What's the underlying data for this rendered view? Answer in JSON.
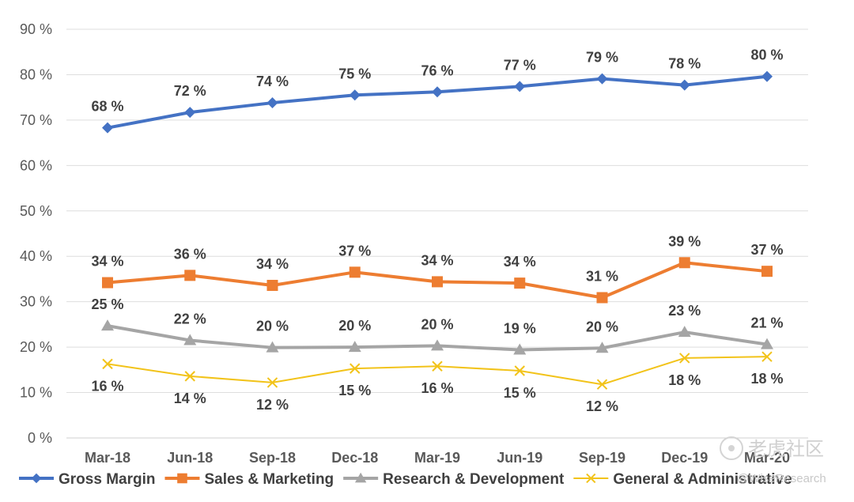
{
  "chart_data": {
    "type": "line",
    "title": "",
    "xlabel": "",
    "ylabel": "",
    "categories": [
      "Mar-18",
      "Jun-18",
      "Sep-18",
      "Dec-18",
      "Mar-19",
      "Jun-19",
      "Sep-19",
      "Dec-19",
      "Mar-20"
    ],
    "ylim": [
      0,
      90
    ],
    "y_ticks": [
      0,
      10,
      20,
      30,
      40,
      50,
      60,
      70,
      80,
      90
    ],
    "y_tick_labels": [
      "0 %",
      "10 %",
      "20 %",
      "30 %",
      "40 %",
      "50 %",
      "60 %",
      "70 %",
      "80 %",
      "90 %"
    ],
    "grid": true,
    "legend_position": "bottom",
    "series": [
      {
        "name": "Gross Margin",
        "color": "#4472c4",
        "marker": "diamond",
        "label_position": "above",
        "values": [
          68.3,
          71.7,
          73.8,
          75.5,
          76.2,
          77.4,
          79.1,
          77.7,
          79.6
        ],
        "labels": [
          "68 %",
          "72 %",
          "74 %",
          "75 %",
          "76 %",
          "77 %",
          "79 %",
          "78 %",
          "80 %"
        ]
      },
      {
        "name": "Sales & Marketing",
        "color": "#ed7d31",
        "marker": "square",
        "label_position": "above",
        "values": [
          34.2,
          35.8,
          33.6,
          36.5,
          34.4,
          34.1,
          30.9,
          38.6,
          36.7
        ],
        "labels": [
          "34 %",
          "36 %",
          "34 %",
          "37 %",
          "34 %",
          "34 %",
          "31 %",
          "39 %",
          "37 %"
        ]
      },
      {
        "name": "Research & Development",
        "color": "#a5a5a5",
        "marker": "triangle",
        "label_position": "above",
        "values": [
          24.7,
          21.5,
          19.9,
          20.0,
          20.3,
          19.4,
          19.8,
          23.3,
          20.6
        ],
        "labels": [
          "25 %",
          "22 %",
          "20 %",
          "20 %",
          "20 %",
          "19 %",
          "20 %",
          "23 %",
          "21 %"
        ]
      },
      {
        "name": "General & Administrative",
        "color": "#f2c31a",
        "marker": "x",
        "label_position": "below",
        "values": [
          16.3,
          13.6,
          12.2,
          15.3,
          15.8,
          14.8,
          11.8,
          17.6,
          17.9
        ],
        "labels": [
          "16 %",
          "14 %",
          "12 %",
          "15 %",
          "16 %",
          "15 %",
          "12 %",
          "18 %",
          "18 %"
        ]
      }
    ]
  },
  "watermark": {
    "handle": "@WiseResearch",
    "site": "老虎社区"
  }
}
